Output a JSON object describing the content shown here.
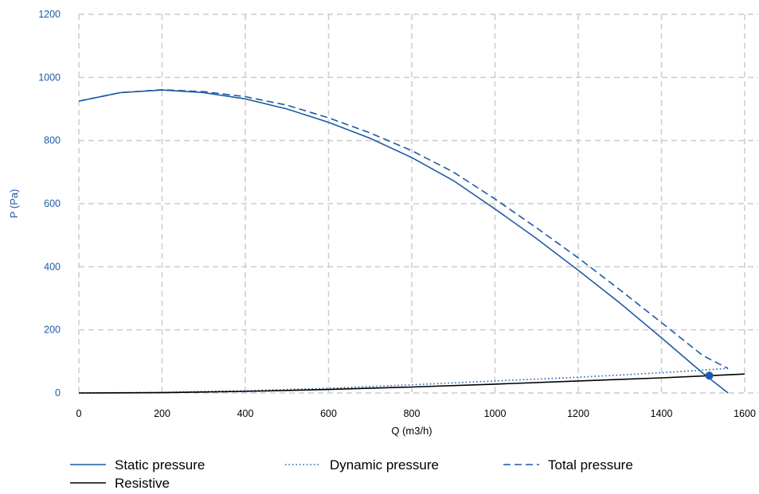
{
  "chart_data": {
    "type": "line",
    "xlabel": "Q (m3/h)",
    "ylabel": "P (Pa)",
    "xlim": [
      0,
      1600
    ],
    "ylim": [
      0,
      1200
    ],
    "x_ticks": [
      "0",
      "200",
      "400",
      "600",
      "800",
      "1000",
      "1200",
      "1400",
      "1600"
    ],
    "y_ticks": [
      "0",
      "200",
      "400",
      "600",
      "800",
      "1000",
      "1200"
    ],
    "grid": true,
    "legend_position": "bottom",
    "series": [
      {
        "name": "Static pressure",
        "style": "solid",
        "color": "#1f5aa6",
        "x": [
          0,
          100,
          200,
          300,
          400,
          500,
          600,
          700,
          800,
          900,
          1000,
          1100,
          1200,
          1300,
          1400,
          1500,
          1560
        ],
        "y": [
          925,
          952,
          960,
          952,
          932,
          900,
          858,
          807,
          746,
          673,
          583,
          489,
          389,
          285,
          175,
          62,
          0
        ]
      },
      {
        "name": "Dynamic pressure",
        "style": "dotted",
        "color": "#1f5aa6",
        "x": [
          0,
          200,
          400,
          600,
          800,
          1000,
          1200,
          1400,
          1560
        ],
        "y": [
          0,
          2,
          7,
          15,
          26,
          38,
          50,
          64,
          78
        ]
      },
      {
        "name": "Total pressure",
        "style": "dashed",
        "color": "#1f5aa6",
        "x": [
          0,
          100,
          200,
          300,
          400,
          500,
          600,
          700,
          800,
          900,
          1000,
          1100,
          1200,
          1300,
          1400,
          1500,
          1560
        ],
        "y": [
          925,
          952,
          961,
          955,
          939,
          912,
          872,
          824,
          768,
          700,
          615,
          523,
          428,
          327,
          223,
          118,
          78
        ]
      },
      {
        "name": "Resistive",
        "style": "solid",
        "color": "#000000",
        "x": [
          0,
          200,
          400,
          600,
          800,
          1000,
          1200,
          1400,
          1600
        ],
        "y": [
          0,
          1,
          5,
          11,
          19,
          28,
          38,
          48,
          60
        ]
      }
    ],
    "operating_point": {
      "x": 1515,
      "y": 55,
      "color": "#1f5aa6"
    },
    "colors": {
      "axis_text": "#1f5aa6",
      "grid": "#cccccc",
      "text": "#000000"
    }
  }
}
